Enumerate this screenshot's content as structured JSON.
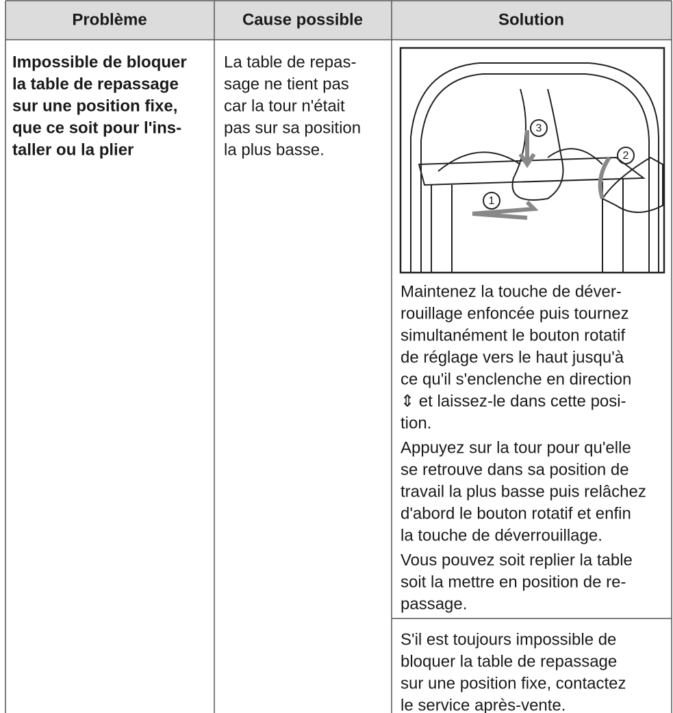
{
  "table": {
    "header": [
      "Problème",
      "Cause possible",
      "Solution"
    ],
    "rows": [
      {
        "problem": [
          "Impossible de bloquer",
          "la table de repassage",
          "sur une position fixe,",
          "que ce soit pour l'ins-",
          "taller ou la plier"
        ],
        "cause": [
          "La table de repas-",
          "sage ne tient pas",
          "car la tour n'était",
          "pas sur sa position",
          "la plus basse."
        ],
        "figure": {
          "callouts": [
            "1",
            "2",
            "3"
          ]
        },
        "solution": [
          [
            "Maintenez la touche de déver-",
            "rouillage enfoncée puis tournez",
            "simultanément le bouton rotatif",
            "de réglage vers le haut jusqu'à",
            "ce qu'il s'enclenche en direction",
            "⇕ et laissez-le dans cette posi-",
            "tion."
          ],
          [
            "Appuyez sur la tour pour qu'elle",
            "se retrouve dans sa position de",
            "travail la plus basse puis relâchez",
            "d'abord le bouton rotatif et enfin",
            "la touche de déverrouillage."
          ],
          [
            "Vous pouvez soit replier la table",
            "soit la mettre en position de re-",
            "passage."
          ]
        ]
      },
      {
        "solution": [
          [
            "S'il est toujours impossible de",
            "bloquer la table de repassage",
            "sur une position fixe, contactez",
            "le service après-vente."
          ]
        ]
      }
    ]
  }
}
